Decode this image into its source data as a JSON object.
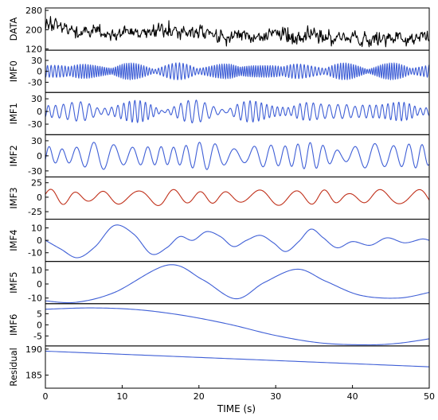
{
  "chart_data": {
    "type": "line",
    "xlabel": "TIME (s)",
    "xlim": [
      0,
      50
    ],
    "xticks": [
      0,
      10,
      20,
      30,
      40,
      50
    ],
    "colors": {
      "data": "#000000",
      "imf": "#3f5fd6",
      "highlight": "#c0301a"
    },
    "panels": [
      {
        "label": "DATA",
        "ylim": [
          115,
          290
        ],
        "yticks": [
          120,
          200,
          280
        ],
        "color": "#000000",
        "curve": {
          "kind": "noise",
          "base": 200,
          "sigma": 24,
          "trend": -0.9,
          "seed": 11,
          "points": 600
        }
      },
      {
        "label": "IMF0",
        "ylim": [
          -58,
          58
        ],
        "yticks": [
          -30,
          0,
          30
        ],
        "color": "#3f5fd6",
        "curve": {
          "kind": "oscillation",
          "amp": 20,
          "cycles": 140,
          "mod": 0.55,
          "modcycles": 9,
          "seed": 3,
          "points": 1400
        }
      },
      {
        "label": "IMF1",
        "ylim": [
          -55,
          45
        ],
        "yticks": [
          -30,
          0,
          30
        ],
        "color": "#3f5fd6",
        "curve": {
          "kind": "oscillation",
          "amp": 22,
          "cycles": 58,
          "mod": 0.7,
          "modcycles": 6,
          "seed": 5,
          "points": 900
        }
      },
      {
        "label": "IMF2",
        "ylim": [
          -42,
          42
        ],
        "yticks": [
          -30,
          0,
          30
        ],
        "color": "#3f5fd6",
        "curve": {
          "kind": "oscillation",
          "amp": 24,
          "cycles": 25,
          "mod": 0.45,
          "modcycles": 4,
          "seed": 7,
          "points": 700
        }
      },
      {
        "label": "IMF3",
        "ylim": [
          -38,
          35
        ],
        "yticks": [
          -25,
          0,
          25
        ],
        "color": "#c0301a",
        "curve": {
          "kind": "oscillation",
          "amp": 13,
          "cycles": 12.5,
          "mod": 0.4,
          "modcycles": 3,
          "seed": 9,
          "points": 600
        }
      },
      {
        "label": "IMF4",
        "ylim": [
          -17,
          17
        ],
        "yticks": [
          -10,
          0,
          10
        ],
        "color": "#3f5fd6",
        "curve": {
          "kind": "keypoints",
          "x": [
            0,
            2,
            4.2,
            6.5,
            9,
            11.5,
            13.8,
            15.8,
            17.5,
            19.2,
            21,
            22.8,
            24.5,
            26.2,
            28,
            29.7,
            31.3,
            33,
            34.6,
            36.2,
            38,
            40,
            42.3,
            44.5,
            46.8,
            49,
            50
          ],
          "y": [
            0,
            -7,
            -14,
            -5,
            12,
            5,
            -11,
            -6,
            3,
            0,
            7,
            3,
            -5,
            0,
            4,
            -2,
            -9,
            -1,
            9,
            2,
            -6,
            -1,
            -4,
            2,
            -2,
            1,
            0
          ]
        }
      },
      {
        "label": "IMF5",
        "ylim": [
          -14,
          16
        ],
        "yticks": [
          -10,
          0,
          10
        ],
        "color": "#3f5fd6",
        "curve": {
          "kind": "keypoints",
          "x": [
            0,
            4,
            9,
            16,
            20.5,
            24.8,
            28.5,
            32.8,
            36.5,
            41,
            46,
            50
          ],
          "y": [
            -12,
            -13,
            -6,
            13.5,
            3,
            -10.5,
            1,
            10.5,
            2,
            -8,
            -10,
            -6
          ]
        }
      },
      {
        "label": "IMF6",
        "ylim": [
          -9.5,
          9.5
        ],
        "yticks": [
          -5,
          0,
          5
        ],
        "color": "#3f5fd6",
        "curve": {
          "kind": "keypoints",
          "x": [
            0,
            6,
            12,
            18,
            24,
            30,
            36,
            42,
            46,
            50
          ],
          "y": [
            7,
            7.6,
            6.8,
            4.2,
            0.2,
            -4.8,
            -8.2,
            -9,
            -8.3,
            -6.3
          ]
        }
      },
      {
        "label": "Residual",
        "ylim": [
          182.5,
          190.6
        ],
        "yticks": [
          185,
          190
        ],
        "color": "#3f5fd6",
        "curve": {
          "kind": "keypoints",
          "x": [
            0,
            10,
            20,
            30,
            40,
            50
          ],
          "y": [
            189.6,
            189.0,
            188.4,
            187.8,
            187.2,
            186.6
          ]
        }
      }
    ]
  }
}
